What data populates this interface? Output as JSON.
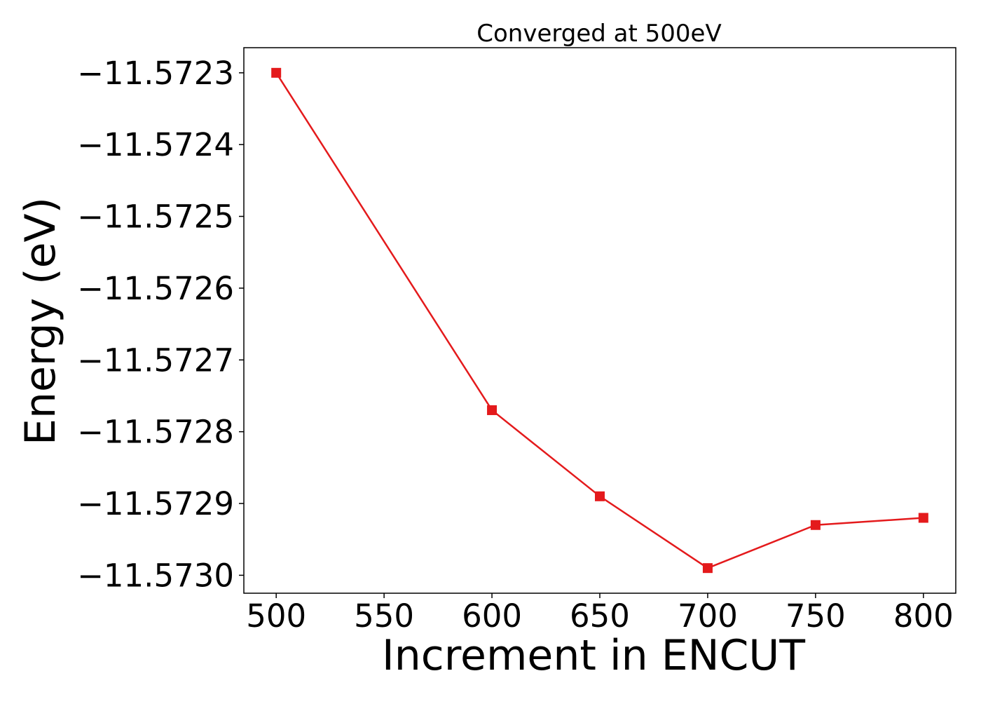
{
  "chart_data": {
    "type": "line",
    "title": "Converged at 500eV",
    "xlabel": "Increment in ENCUT",
    "ylabel": "Energy (eV)",
    "x": [
      500,
      600,
      650,
      700,
      750,
      800
    ],
    "series": [
      {
        "color": "#e41a1c",
        "marker": "square",
        "values": [
          -11.5723,
          -11.57277,
          -11.57289,
          -11.57299,
          -11.57293,
          -11.57292
        ]
      }
    ],
    "xlim": [
      485,
      815
    ],
    "ylim": [
      -11.573025,
      -11.572265
    ],
    "xticks": [
      500,
      550,
      600,
      650,
      700,
      750,
      800
    ],
    "xtick_labels": [
      "500",
      "550",
      "600",
      "650",
      "700",
      "750",
      "800"
    ],
    "yticks": [
      -11.5723,
      -11.5724,
      -11.5725,
      -11.5726,
      -11.5727,
      -11.5728,
      -11.5729,
      -11.573
    ],
    "ytick_labels": [
      "−11.5723",
      "−11.5724",
      "−11.5725",
      "−11.5726",
      "−11.5727",
      "−11.5728",
      "−11.5729",
      "−11.5730"
    ],
    "grid": false,
    "legend": false
  }
}
